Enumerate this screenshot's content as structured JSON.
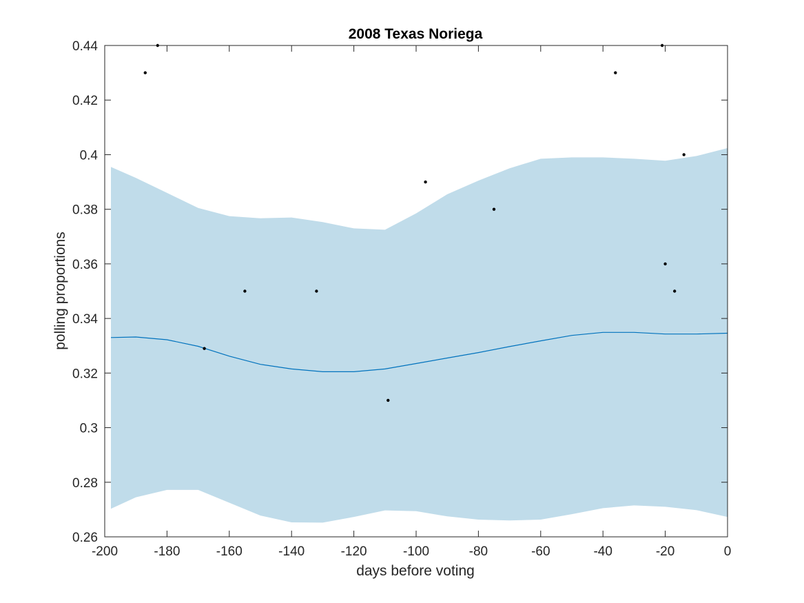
{
  "chart_data": {
    "type": "scatter",
    "title": "2008 Texas Noriega",
    "xlabel": "days before voting",
    "ylabel": "polling proportions",
    "xlim": [
      -200,
      0
    ],
    "ylim": [
      0.26,
      0.44
    ],
    "xticks": [
      -200,
      -180,
      -160,
      -140,
      -120,
      -100,
      -80,
      -60,
      -40,
      -20,
      0
    ],
    "xtick_labels": [
      "-200",
      "-180",
      "-160",
      "-140",
      "-120",
      "-100",
      "-80",
      "-60",
      "-40",
      "-20",
      "0"
    ],
    "yticks": [
      0.26,
      0.28,
      0.3,
      0.32,
      0.34,
      0.36,
      0.38,
      0.4,
      0.42,
      0.44
    ],
    "ytick_labels": [
      "0.26",
      "0.28",
      "0.3",
      "0.32",
      "0.34",
      "0.36",
      "0.38",
      "0.4",
      "0.42",
      "0.44"
    ],
    "grid": false,
    "series": [
      {
        "kind": "points",
        "color": "#000000",
        "x": [
          -187,
          -183,
          -168,
          -155,
          -132,
          -109,
          -97,
          -75,
          -36,
          -21,
          -20,
          -17,
          -14
        ],
        "y": [
          0.43,
          0.44,
          0.329,
          0.35,
          0.35,
          0.31,
          0.39,
          0.38,
          0.43,
          0.44,
          0.36,
          0.35,
          0.4
        ]
      },
      {
        "kind": "line",
        "color": "#0072bd",
        "x": [
          -198,
          -190,
          -180,
          -170,
          -160,
          -150,
          -140,
          -130,
          -120,
          -110,
          -100,
          -90,
          -80,
          -70,
          -60,
          -50,
          -40,
          -30,
          -20,
          -10,
          0
        ],
        "y": [
          0.333,
          0.3332,
          0.3322,
          0.3298,
          0.3262,
          0.3232,
          0.3215,
          0.3205,
          0.3205,
          0.3215,
          0.3235,
          0.3255,
          0.3275,
          0.3297,
          0.3318,
          0.3338,
          0.3349,
          0.3349,
          0.3343,
          0.3343,
          0.3346
        ]
      },
      {
        "kind": "band",
        "color": "#c0dcea",
        "x": [
          -198,
          -190,
          -180,
          -170,
          -160,
          -150,
          -140,
          -130,
          -120,
          -110,
          -100,
          -90,
          -80,
          -70,
          -60,
          -50,
          -40,
          -30,
          -20,
          -10,
          0
        ],
        "upper": [
          0.3955,
          0.3915,
          0.386,
          0.3805,
          0.3775,
          0.3767,
          0.377,
          0.3753,
          0.373,
          0.3725,
          0.3785,
          0.3855,
          0.3905,
          0.395,
          0.3985,
          0.399,
          0.399,
          0.3985,
          0.3978,
          0.3995,
          0.4024
        ],
        "lower": [
          0.2703,
          0.2745,
          0.2772,
          0.2772,
          0.2725,
          0.2678,
          0.2653,
          0.2652,
          0.2673,
          0.2697,
          0.2694,
          0.2675,
          0.2663,
          0.266,
          0.2663,
          0.2683,
          0.2705,
          0.2715,
          0.271,
          0.2698,
          0.2673
        ]
      }
    ]
  }
}
